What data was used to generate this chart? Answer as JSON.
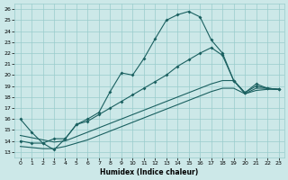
{
  "xlabel": "Humidex (Indice chaleur)",
  "bg_color": "#cce8e8",
  "grid_color": "#99cccc",
  "line_color": "#1a6060",
  "xlim": [
    -0.5,
    23.5
  ],
  "ylim": [
    12.5,
    26.5
  ],
  "yticks": [
    13,
    14,
    15,
    16,
    17,
    18,
    19,
    20,
    21,
    22,
    23,
    24,
    25,
    26
  ],
  "xticks": [
    0,
    1,
    2,
    3,
    4,
    5,
    6,
    7,
    8,
    9,
    10,
    11,
    12,
    13,
    14,
    15,
    16,
    17,
    18,
    19,
    20,
    21,
    22,
    23
  ],
  "line1_x": [
    0,
    1,
    2,
    3,
    4,
    5,
    6,
    7,
    8,
    9,
    10,
    11,
    12,
    13,
    14,
    15,
    16,
    17,
    18,
    19,
    20,
    21,
    22,
    23
  ],
  "line1_y": [
    16.0,
    14.8,
    13.8,
    13.2,
    14.2,
    15.5,
    16.0,
    16.6,
    18.5,
    20.2,
    20.0,
    21.5,
    23.3,
    25.0,
    25.5,
    25.8,
    25.3,
    23.2,
    22.0,
    19.5,
    18.4,
    19.2,
    18.8,
    18.7
  ],
  "line2_x": [
    0,
    1,
    2,
    3,
    4,
    5,
    6,
    7,
    8,
    9,
    10,
    11,
    12,
    13,
    14,
    15,
    16,
    17,
    18,
    19,
    20,
    21,
    22,
    23
  ],
  "line2_y": [
    14.0,
    13.8,
    13.8,
    14.2,
    14.2,
    15.5,
    15.8,
    16.4,
    17.0,
    17.6,
    18.2,
    18.8,
    19.4,
    20.0,
    20.8,
    21.4,
    22.0,
    22.5,
    21.8,
    19.5,
    18.4,
    19.0,
    18.8,
    18.7
  ],
  "line3_x": [
    0,
    1,
    2,
    3,
    4,
    5,
    6,
    7,
    8,
    9,
    10,
    11,
    12,
    13,
    14,
    15,
    16,
    17,
    18,
    19,
    20,
    21,
    22,
    23
  ],
  "line3_y": [
    14.5,
    14.3,
    14.1,
    13.9,
    14.0,
    14.4,
    14.8,
    15.2,
    15.6,
    16.0,
    16.4,
    16.8,
    17.2,
    17.6,
    18.0,
    18.4,
    18.8,
    19.2,
    19.5,
    19.5,
    18.3,
    18.8,
    18.8,
    18.7
  ],
  "line4_x": [
    0,
    1,
    2,
    3,
    4,
    5,
    6,
    7,
    8,
    9,
    10,
    11,
    12,
    13,
    14,
    15,
    16,
    17,
    18,
    19,
    20,
    21,
    22,
    23
  ],
  "line4_y": [
    13.5,
    13.4,
    13.3,
    13.3,
    13.5,
    13.8,
    14.1,
    14.5,
    14.9,
    15.3,
    15.7,
    16.1,
    16.5,
    16.9,
    17.3,
    17.7,
    18.1,
    18.5,
    18.8,
    18.8,
    18.3,
    18.6,
    18.7,
    18.7
  ]
}
